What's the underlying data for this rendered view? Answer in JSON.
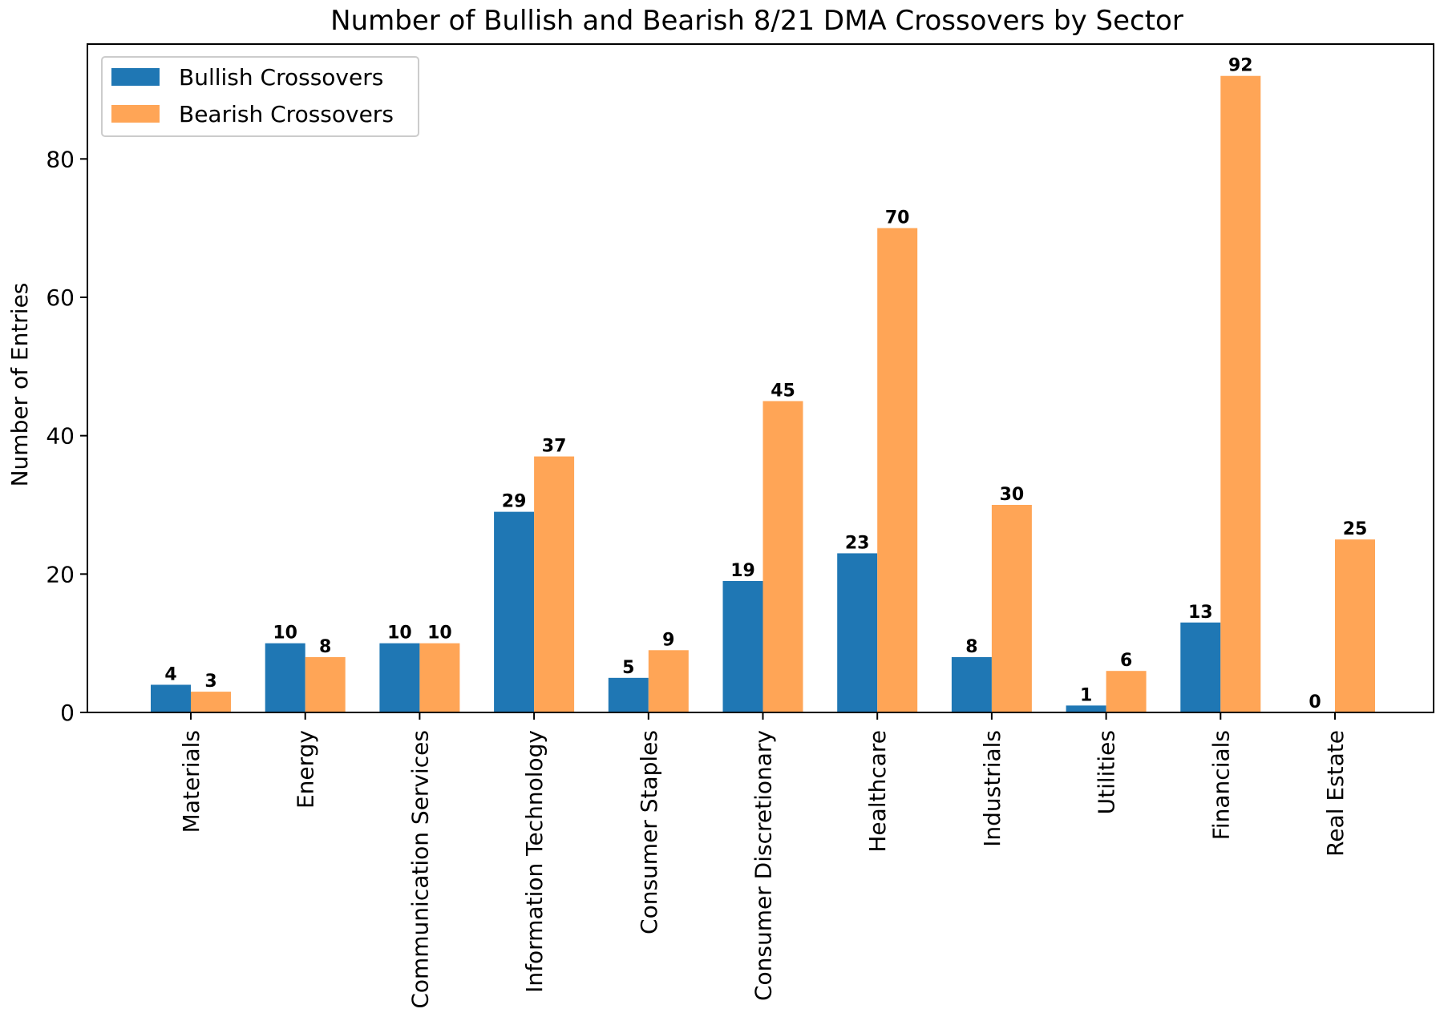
{
  "chart_data": {
    "type": "bar",
    "title": "Number of Bullish and Bearish 8/21 DMA Crossovers by Sector",
    "xlabel": "",
    "ylabel": "Number of Entries",
    "ylim": [
      0,
      96.6
    ],
    "yticks": [
      0,
      20,
      40,
      60,
      80
    ],
    "grid": false,
    "legend_position": "top-left",
    "categories": [
      "Materials",
      "Energy",
      "Communication Services",
      "Information Technology",
      "Consumer Staples",
      "Consumer Discretionary",
      "Healthcare",
      "Industrials",
      "Utilities",
      "Financials",
      "Real Estate"
    ],
    "series": [
      {
        "name": "Bullish Crossovers",
        "color": "#1f77b4",
        "values": [
          4,
          10,
          10,
          29,
          5,
          19,
          23,
          8,
          1,
          13,
          0
        ]
      },
      {
        "name": "Bearish Crossovers",
        "color": "#ffa556",
        "values": [
          3,
          8,
          10,
          37,
          9,
          45,
          70,
          30,
          6,
          92,
          25
        ]
      }
    ]
  }
}
